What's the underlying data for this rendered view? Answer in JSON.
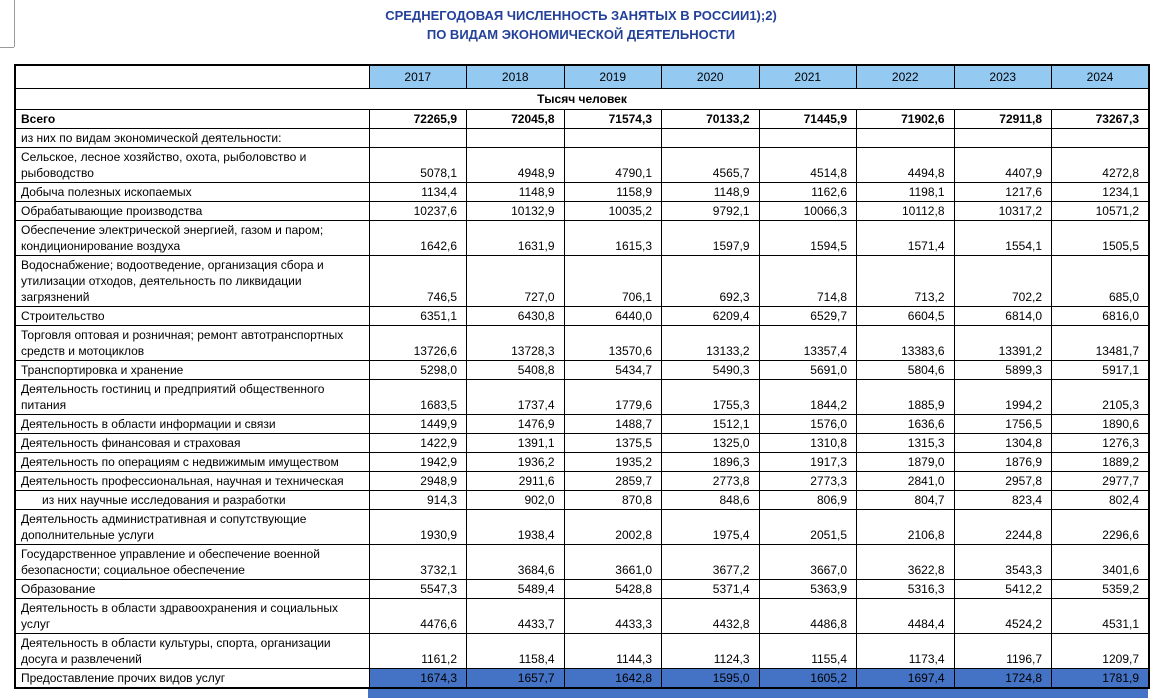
{
  "title": {
    "line1": "СРЕДНЕГОДОВАЯ ЧИСЛЕННОСТЬ ЗАНЯТЫХ В РОССИИ1);2)",
    "line2": "ПО ВИДАМ ЭКОНОМИЧЕСКОЙ ДЕЯТЕЛЬНОСТИ"
  },
  "colors": {
    "header_bg": "#94c9f2",
    "selection": "#4472c4",
    "title_color": "#24419a",
    "border": "#000000"
  },
  "table": {
    "unit": "Тысяч человек",
    "years": [
      "2017",
      "2018",
      "2019",
      "2020",
      "2021",
      "2022",
      "2023",
      "2024"
    ],
    "rows": [
      {
        "label": "Всего",
        "bold": true,
        "values": [
          "72265,9",
          "72045,8",
          "71574,3",
          "70133,2",
          "71445,9",
          "71902,6",
          "72911,8",
          "73267,3"
        ]
      },
      {
        "label": "из них по видам экономической деятельности:",
        "values": null
      },
      {
        "label": "Сельское, лесное хозяйство, охота, рыболовство и рыбоводство",
        "values": [
          "5078,1",
          "4948,9",
          "4790,1",
          "4565,7",
          "4514,8",
          "4494,8",
          "4407,9",
          "4272,8"
        ]
      },
      {
        "label": "Добыча полезных ископаемых",
        "values": [
          "1134,4",
          "1148,9",
          "1158,9",
          "1148,9",
          "1162,6",
          "1198,1",
          "1217,6",
          "1234,1"
        ]
      },
      {
        "label": "Обрабатывающие производства",
        "values": [
          "10237,6",
          "10132,9",
          "10035,2",
          "9792,1",
          "10066,3",
          "10112,8",
          "10317,2",
          "10571,2"
        ]
      },
      {
        "label": "Обеспечение электрической энергией, газом и паром; кондиционирование воздуха",
        "values": [
          "1642,6",
          "1631,9",
          "1615,3",
          "1597,9",
          "1594,5",
          "1571,4",
          "1554,1",
          "1505,5"
        ]
      },
      {
        "label": "Водоснабжение; водоотведение, организация сбора и утилизации отходов, деятельность по ликвидации загрязнений",
        "values": [
          "746,5",
          "727,0",
          "706,1",
          "692,3",
          "714,8",
          "713,2",
          "702,2",
          "685,0"
        ]
      },
      {
        "label": "Строительство",
        "values": [
          "6351,1",
          "6430,8",
          "6440,0",
          "6209,4",
          "6529,7",
          "6604,5",
          "6814,0",
          "6816,0"
        ]
      },
      {
        "label": "Торговля оптовая и розничная; ремонт автотранспортных средств и мотоциклов",
        "values": [
          "13726,6",
          "13728,3",
          "13570,6",
          "13133,2",
          "13357,4",
          "13383,6",
          "13391,2",
          "13481,7"
        ]
      },
      {
        "label": "Транспортировка и хранение",
        "values": [
          "5298,0",
          "5408,8",
          "5434,7",
          "5490,3",
          "5691,0",
          "5804,6",
          "5899,3",
          "5917,1"
        ]
      },
      {
        "label": "Деятельность гостиниц и предприятий общественного питания",
        "values": [
          "1683,5",
          "1737,4",
          "1779,6",
          "1755,3",
          "1844,2",
          "1885,9",
          "1994,2",
          "2105,3"
        ]
      },
      {
        "label": "Деятельность в области информации и связи",
        "values": [
          "1449,9",
          "1476,9",
          "1488,7",
          "1512,1",
          "1576,0",
          "1636,6",
          "1756,5",
          "1890,6"
        ]
      },
      {
        "label": "Деятельность финансовая и страховая",
        "values": [
          "1422,9",
          "1391,1",
          "1375,5",
          "1325,0",
          "1310,8",
          "1315,3",
          "1304,8",
          "1276,3"
        ]
      },
      {
        "label": "Деятельность по операциям с недвижимым имуществом",
        "values": [
          "1942,9",
          "1936,2",
          "1935,2",
          "1896,3",
          "1917,3",
          "1879,0",
          "1876,9",
          "1889,2"
        ]
      },
      {
        "label": "Деятельность профессиональная, научная и техническая",
        "values": [
          "2948,9",
          "2911,6",
          "2859,7",
          "2773,8",
          "2773,3",
          "2841,0",
          "2957,8",
          "2977,7"
        ]
      },
      {
        "label": "из них научные исследования и разработки",
        "indent": true,
        "values": [
          "914,3",
          "902,0",
          "870,8",
          "848,6",
          "806,9",
          "804,7",
          "823,4",
          "802,4"
        ]
      },
      {
        "label": "Деятельность административная и сопутствующие дополнительные услуги",
        "values": [
          "1930,9",
          "1938,4",
          "2002,8",
          "1975,4",
          "2051,5",
          "2106,8",
          "2244,8",
          "2296,6"
        ]
      },
      {
        "label": "Государственное управление и обеспечение военной безопасности; социальное обеспечение",
        "values": [
          "3732,1",
          "3684,6",
          "3661,0",
          "3677,2",
          "3667,0",
          "3622,8",
          "3543,3",
          "3401,6"
        ]
      },
      {
        "label": "Образование",
        "values": [
          "5547,3",
          "5489,4",
          "5428,8",
          "5371,4",
          "5363,9",
          "5316,3",
          "5412,2",
          "5359,2"
        ]
      },
      {
        "label": "Деятельность в области здравоохранения и социальных услуг",
        "values": [
          "4476,6",
          "4433,7",
          "4433,3",
          "4432,8",
          "4486,8",
          "4484,4",
          "4524,2",
          "4531,1"
        ]
      },
      {
        "label": "Деятельность в области культуры, спорта, организации досуга и развлечений",
        "values": [
          "1161,2",
          "1158,4",
          "1144,3",
          "1124,3",
          "1155,4",
          "1173,4",
          "1196,7",
          "1209,7"
        ]
      },
      {
        "label": "Предоставление прочих видов услуг",
        "highlight": true,
        "values": [
          "1674,3",
          "1657,7",
          "1642,8",
          "1595,0",
          "1605,2",
          "1697,4",
          "1724,8",
          "1781,9"
        ]
      }
    ]
  }
}
